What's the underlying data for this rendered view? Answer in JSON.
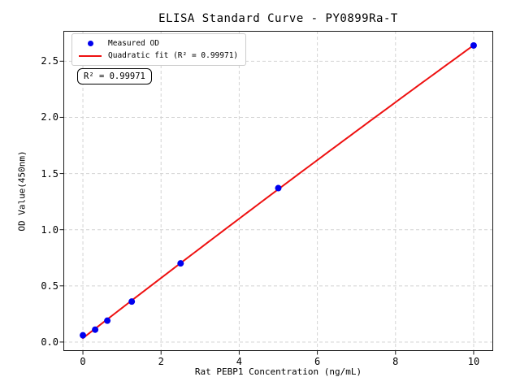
{
  "chart_data": {
    "type": "scatter",
    "title": "ELISA Standard Curve - PY0899Ra-T",
    "xlabel": "Rat PEBP1 Concentration (ng/mL)",
    "ylabel": "OD Value(450nm)",
    "x": [
      0,
      0.313,
      0.625,
      1.25,
      2.5,
      5,
      10
    ],
    "series": [
      {
        "name": "Measured OD",
        "type": "scatter",
        "color": "#0000ee",
        "values": [
          0.06,
          0.11,
          0.19,
          0.36,
          0.7,
          1.37,
          2.64
        ]
      },
      {
        "name": "Quadratic fit (R² = 0.99971)",
        "type": "line",
        "color": "#ee1111",
        "fit": "quadratic",
        "r_squared": 0.99971
      }
    ],
    "annotation": "R² = 0.99971",
    "xlim": [
      -0.5,
      10.5
    ],
    "ylim": [
      -0.08,
      2.77
    ],
    "xticks": [
      "0",
      "2",
      "4",
      "6",
      "8",
      "10"
    ],
    "xtick_values": [
      0,
      2,
      4,
      6,
      8,
      10
    ],
    "yticks": [
      "0.0",
      "0.5",
      "1.0",
      "1.5",
      "2.0",
      "2.5"
    ],
    "ytick_values": [
      0,
      0.5,
      1.0,
      1.5,
      2.0,
      2.5
    ],
    "grid": true,
    "grid_style": "dashed",
    "legend_position": "upper left"
  },
  "colors": {
    "points": "#0000ee",
    "fit_line": "#ee1111",
    "grid": "#d4d4d4",
    "frame": "#1a1a1a",
    "background": "#ffffff",
    "legend_border": "#cccccc"
  }
}
